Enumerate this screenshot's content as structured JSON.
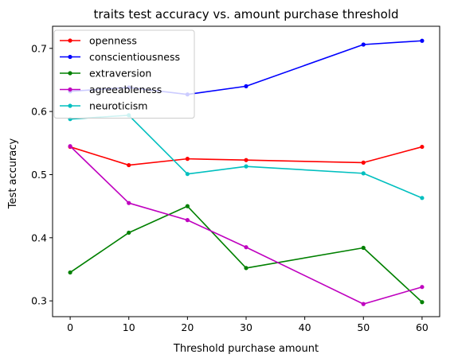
{
  "chart_data": {
    "type": "line",
    "title": "traits test accuracy vs. amount purchase threshold",
    "xlabel": "Threshold purchase amount",
    "ylabel": "Test accuracy",
    "x": [
      0,
      10,
      20,
      30,
      50,
      60
    ],
    "xlim": [
      -3,
      63
    ],
    "ylim": [
      0.275,
      0.735
    ],
    "xticks": [
      0,
      10,
      20,
      30,
      40,
      50,
      60
    ],
    "xtick_labels": [
      "0",
      "10",
      "20",
      "30",
      "40",
      "50",
      "60"
    ],
    "yticks": [
      0.3,
      0.4,
      0.5,
      0.6,
      0.7
    ],
    "ytick_labels": [
      "0.3",
      "0.4",
      "0.5",
      "0.6",
      "0.7"
    ],
    "grid": false,
    "legend_position": "top-left",
    "series": [
      {
        "name": "openness",
        "color": "#ff0000",
        "values": [
          0.544,
          0.515,
          0.525,
          0.523,
          0.519,
          0.544
        ]
      },
      {
        "name": "conscientiousness",
        "color": "#0000ff",
        "values": [
          0.632,
          0.638,
          0.627,
          0.64,
          0.706,
          0.712
        ]
      },
      {
        "name": "extraversion",
        "color": "#008000",
        "values": [
          0.345,
          0.408,
          0.45,
          0.352,
          0.384,
          0.298
        ]
      },
      {
        "name": "agreeableness",
        "color": "#bf00bf",
        "values": [
          0.545,
          0.455,
          0.428,
          0.385,
          0.295,
          0.322
        ]
      },
      {
        "name": "neuroticism",
        "color": "#00bfbf",
        "values": [
          0.588,
          0.594,
          0.501,
          0.513,
          0.502,
          0.463
        ]
      }
    ]
  }
}
